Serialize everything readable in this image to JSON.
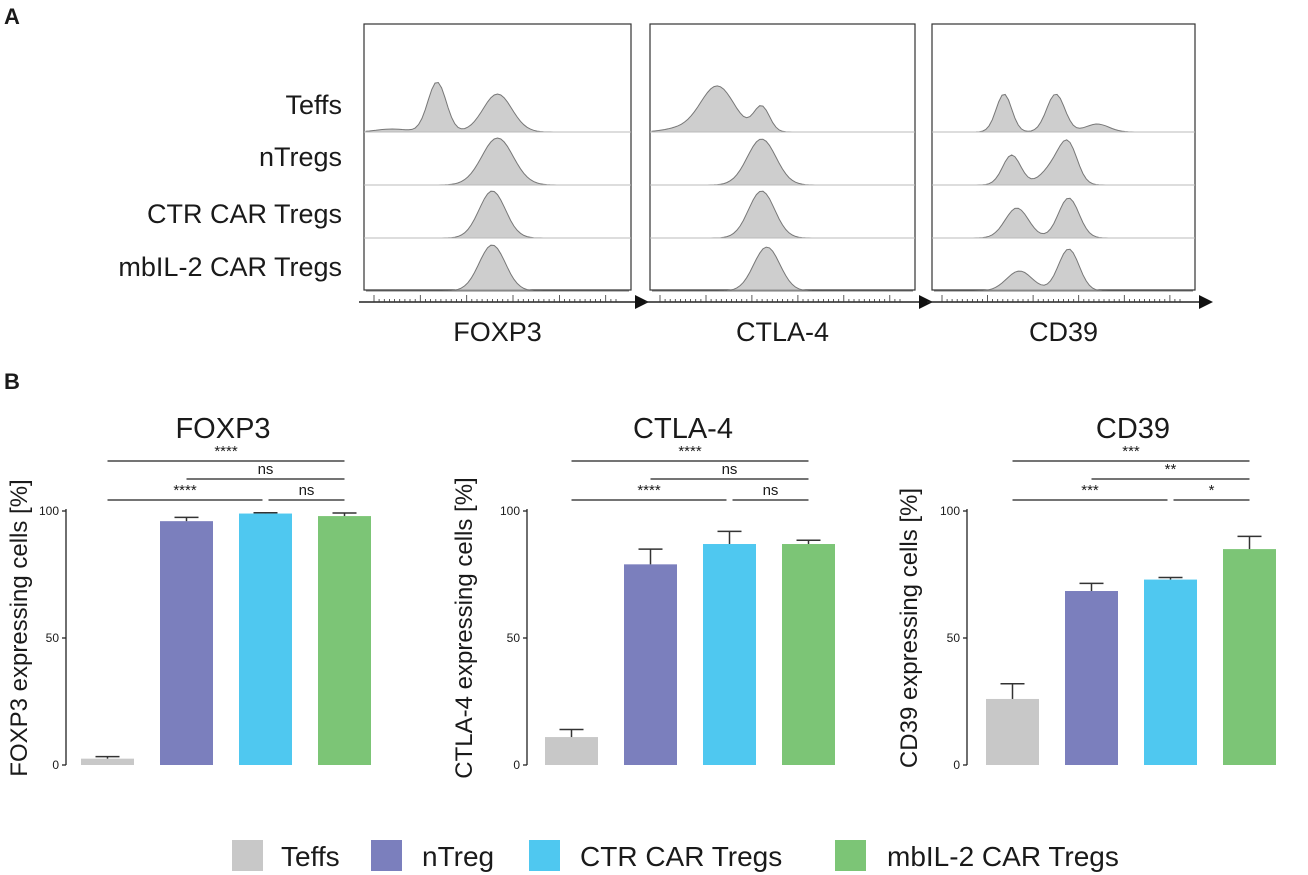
{
  "panel_a": {
    "letter": "A",
    "rows": [
      "Teffs",
      "nTregs",
      "CTR CAR Tregs",
      "mbIL-2 CAR Tregs"
    ],
    "markers": [
      "FOXP3",
      "CTLA-4",
      "CD39"
    ]
  },
  "panel_b": {
    "letter": "B"
  },
  "legend": {
    "items": [
      {
        "label": "Teffs",
        "color": "#c8c8c8"
      },
      {
        "label": "nTreg",
        "color": "#7b7fbd"
      },
      {
        "label": "CTR CAR Tregs",
        "color": "#4fc8f0"
      },
      {
        "label": "mbIL-2 CAR Tregs",
        "color": "#7cc576"
      }
    ]
  },
  "chart_data": [
    {
      "type": "bar",
      "title": "FOXP3",
      "ylabel": "FOXP3 expressing cells [%]",
      "ylim": [
        0,
        100
      ],
      "yticks": [
        0,
        50,
        100
      ],
      "categories": [
        "Teffs",
        "nTreg",
        "CTR CAR Tregs",
        "mbIL-2 CAR Tregs"
      ],
      "colors": [
        "#c8c8c8",
        "#7b7fbd",
        "#4fc8f0",
        "#7cc576"
      ],
      "values": [
        2.5,
        96,
        99,
        98
      ],
      "errors": [
        0.8,
        1.5,
        0.3,
        1.2
      ],
      "significance": [
        {
          "from": 0,
          "to": 3,
          "label": "****",
          "level": 2
        },
        {
          "from": 1,
          "to": 3,
          "label": "ns",
          "level": 1
        },
        {
          "from": 0,
          "to": 2,
          "label": "****",
          "level": 0
        },
        {
          "from": 2,
          "to": 3,
          "label": "ns",
          "level": 0
        }
      ]
    },
    {
      "type": "bar",
      "title": "CTLA-4",
      "ylabel": "CTLA-4 expressing cells [%]",
      "ylim": [
        0,
        100
      ],
      "yticks": [
        0,
        50,
        100
      ],
      "categories": [
        "Teffs",
        "nTreg",
        "CTR CAR Tregs",
        "mbIL-2 CAR Tregs"
      ],
      "colors": [
        "#c8c8c8",
        "#7b7fbd",
        "#4fc8f0",
        "#7cc576"
      ],
      "values": [
        11,
        79,
        87,
        87
      ],
      "errors": [
        3,
        6,
        5,
        1.5
      ],
      "significance": [
        {
          "from": 0,
          "to": 3,
          "label": "****",
          "level": 2
        },
        {
          "from": 1,
          "to": 3,
          "label": "ns",
          "level": 1
        },
        {
          "from": 0,
          "to": 2,
          "label": "****",
          "level": 0
        },
        {
          "from": 2,
          "to": 3,
          "label": "ns",
          "level": 0
        }
      ]
    },
    {
      "type": "bar",
      "title": "CD39",
      "ylabel": "CD39 expressing cells [%]",
      "ylim": [
        0,
        100
      ],
      "yticks": [
        0,
        50,
        100
      ],
      "categories": [
        "Teffs",
        "nTreg",
        "CTR CAR Tregs",
        "mbIL-2 CAR Tregs"
      ],
      "colors": [
        "#c8c8c8",
        "#7b7fbd",
        "#4fc8f0",
        "#7cc576"
      ],
      "values": [
        26,
        68.5,
        73,
        85
      ],
      "errors": [
        6,
        3,
        0.8,
        5
      ],
      "significance": [
        {
          "from": 0,
          "to": 3,
          "label": "***",
          "level": 2
        },
        {
          "from": 1,
          "to": 3,
          "label": "**",
          "level": 1
        },
        {
          "from": 0,
          "to": 2,
          "label": "***",
          "level": 0
        },
        {
          "from": 2,
          "to": 3,
          "label": "*",
          "level": 0
        }
      ]
    }
  ]
}
